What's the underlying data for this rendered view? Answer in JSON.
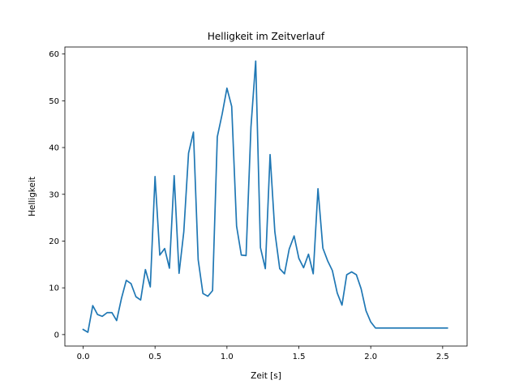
{
  "chart_data": {
    "type": "line",
    "title": "Helligkeit im Zeitverlauf",
    "xlabel": "Zeit [s]",
    "ylabel": "Helligkeit",
    "xlim": [
      -0.127,
      2.67
    ],
    "ylim": [
      -2.45,
      61.5
    ],
    "xticks": [
      0.0,
      0.5,
      1.0,
      1.5,
      2.0,
      2.5
    ],
    "xtick_labels": [
      "0.0",
      "0.5",
      "1.0",
      "1.5",
      "2.0",
      "2.5"
    ],
    "yticks": [
      0,
      10,
      20,
      30,
      40,
      50,
      60
    ],
    "ytick_labels": [
      "0",
      "10",
      "20",
      "30",
      "40",
      "50",
      "60"
    ],
    "grid": false,
    "legend": "none",
    "series": [
      {
        "color": "#1f77b4",
        "x": [
          0.0,
          0.033,
          0.067,
          0.1,
          0.133,
          0.167,
          0.2,
          0.233,
          0.267,
          0.3,
          0.333,
          0.367,
          0.4,
          0.433,
          0.467,
          0.5,
          0.533,
          0.567,
          0.6,
          0.633,
          0.667,
          0.7,
          0.733,
          0.767,
          0.8,
          0.833,
          0.867,
          0.9,
          0.933,
          0.967,
          1.0,
          1.033,
          1.067,
          1.1,
          1.133,
          1.167,
          1.2,
          1.233,
          1.267,
          1.3,
          1.333,
          1.367,
          1.4,
          1.433,
          1.467,
          1.5,
          1.533,
          1.567,
          1.6,
          1.633,
          1.667,
          1.7,
          1.733,
          1.767,
          1.8,
          1.833,
          1.867,
          1.9,
          1.933,
          1.967,
          2.0,
          2.033,
          2.067,
          2.1,
          2.133,
          2.167,
          2.2,
          2.233,
          2.267,
          2.3,
          2.333,
          2.367,
          2.4,
          2.433,
          2.467,
          2.5,
          2.533
        ],
        "y": [
          1.1,
          0.5,
          6.2,
          4.3,
          3.9,
          4.7,
          4.7,
          3.0,
          7.8,
          11.6,
          10.9,
          8.1,
          7.4,
          13.9,
          10.2,
          33.8,
          17.0,
          18.4,
          14.2,
          34.0,
          13.1,
          22.0,
          38.8,
          43.3,
          16.0,
          8.8,
          8.2,
          9.4,
          42.3,
          47.2,
          52.7,
          48.8,
          23.2,
          17.0,
          16.9,
          44.4,
          58.5,
          18.6,
          14.1,
          38.5,
          22.0,
          14.1,
          13.0,
          18.3,
          21.1,
          16.3,
          14.3,
          17.2,
          13.0,
          31.2,
          18.5,
          15.8,
          13.7,
          8.9,
          6.3,
          12.8,
          13.4,
          12.8,
          9.8,
          5.1,
          2.7,
          1.4,
          1.4,
          1.4,
          1.4,
          1.4,
          1.4,
          1.4,
          1.4,
          1.4,
          1.4,
          1.4,
          1.4,
          1.4,
          1.4,
          1.4,
          1.4
        ]
      }
    ]
  }
}
